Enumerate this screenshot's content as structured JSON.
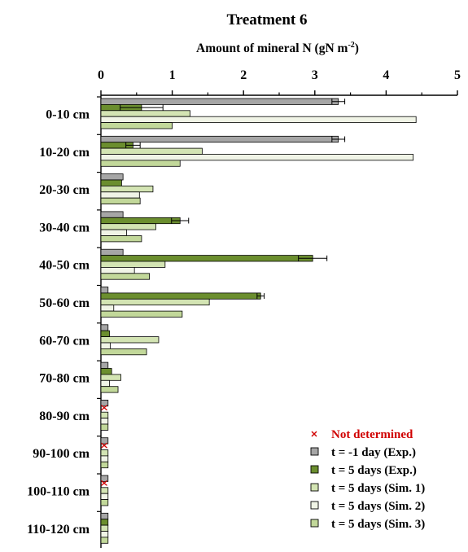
{
  "chart_data": {
    "type": "bar",
    "orientation": "horizontal",
    "title": "Treatment 6",
    "xlabel": "Amount of mineral N (gN  m",
    "xlabel_superscript": "-2",
    "xlabel_suffix": ")",
    "xlim": [
      0,
      5
    ],
    "x_ticks": [
      "0",
      "1",
      "2",
      "3",
      "4",
      "5"
    ],
    "x_axis_position": "top",
    "grid": false,
    "legend_position": "bottom-right",
    "categories": [
      "0-10 cm",
      "10-20 cm",
      "20-30 cm",
      "30-40 cm",
      "40-50 cm",
      "50-60 cm",
      "60-70 cm",
      "70-80 cm",
      "80-90 cm",
      "90-100 cm",
      "100-110 cm",
      "110-120 cm"
    ],
    "not_determined_label": "Not determined",
    "not_determined_color": "#d00000",
    "series": [
      {
        "name": "t = -1 day (Exp.)",
        "color": "#a6a6a6",
        "values": [
          3.33,
          3.33,
          0.31,
          0.31,
          0.31,
          0.1,
          0.1,
          0.1,
          0.1,
          0.1,
          0.1,
          0.1
        ],
        "errors": [
          0.09,
          0.09,
          0,
          0,
          0,
          0,
          0,
          0,
          0,
          0,
          0,
          0
        ],
        "not_determined": [
          false,
          false,
          false,
          false,
          false,
          false,
          false,
          false,
          true,
          true,
          true,
          false
        ]
      },
      {
        "name": "t = 5 days (Exp.)",
        "color": "#6b8e2e",
        "values": [
          0.57,
          0.45,
          0.29,
          1.11,
          2.97,
          2.24,
          0.12,
          0.15,
          0,
          0,
          0,
          0.1
        ],
        "errors": [
          0.3,
          0.1,
          0,
          0.12,
          0.2,
          0.05,
          0,
          0,
          0,
          0,
          0,
          0
        ],
        "not_determined": [
          false,
          false,
          false,
          false,
          false,
          false,
          false,
          false,
          false,
          false,
          false,
          false
        ]
      },
      {
        "name": "t = 5 days (Sim. 1)",
        "color": "#d3e4b3",
        "values": [
          1.25,
          1.42,
          0.73,
          0.77,
          0.9,
          1.52,
          0.81,
          0.28,
          0.1,
          0.1,
          0.1,
          0.1
        ],
        "not_determined": [
          false,
          false,
          false,
          false,
          false,
          false,
          false,
          false,
          false,
          false,
          false,
          false
        ]
      },
      {
        "name": "t = 5 days (Sim. 2)",
        "color": "#f0f4e6",
        "values": [
          4.42,
          4.38,
          0.54,
          0.36,
          0.47,
          0.18,
          0.13,
          0.12,
          0.1,
          0.1,
          0.1,
          0.1
        ],
        "not_determined": [
          false,
          false,
          false,
          false,
          false,
          false,
          false,
          false,
          false,
          false,
          false,
          false
        ]
      },
      {
        "name": "t = 5 days (Sim. 3)",
        "color": "#c2d89a",
        "values": [
          1.0,
          1.11,
          0.55,
          0.57,
          0.68,
          1.14,
          0.64,
          0.24,
          0.1,
          0.1,
          0.1,
          0.1
        ],
        "not_determined": [
          false,
          false,
          false,
          false,
          false,
          false,
          false,
          false,
          false,
          false,
          false,
          false
        ]
      }
    ]
  }
}
